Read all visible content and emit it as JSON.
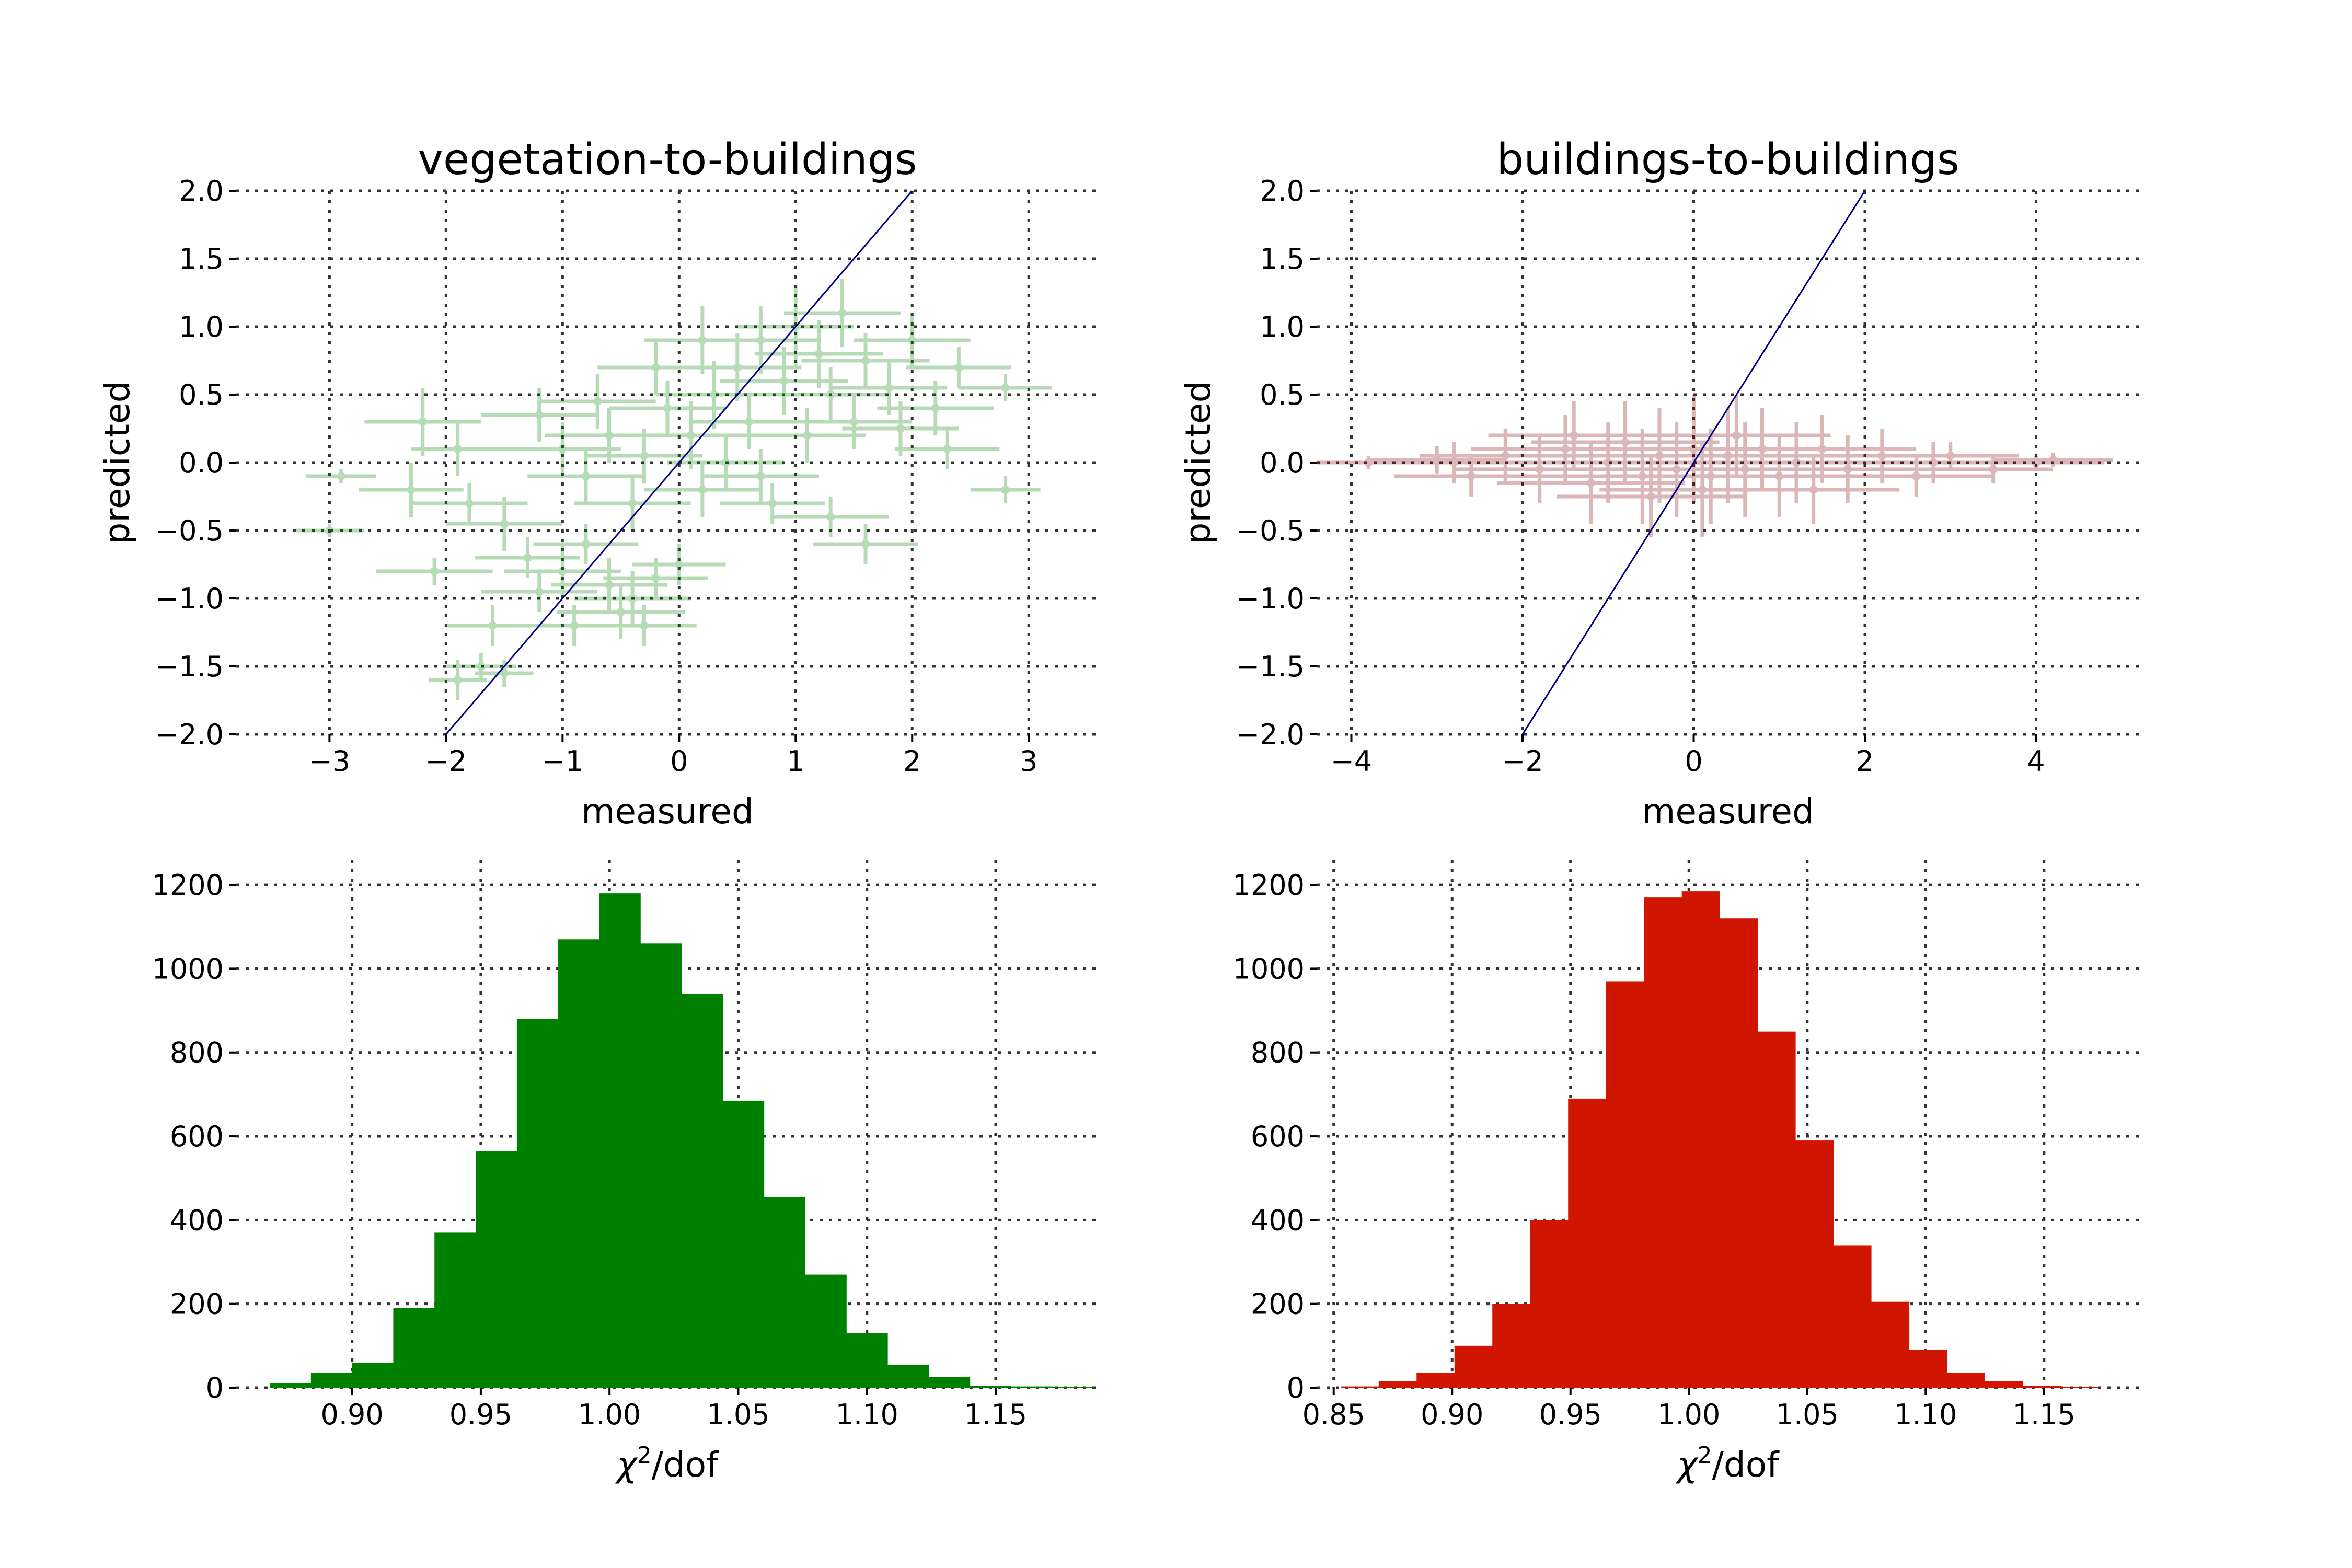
{
  "figure": {
    "background": "#ffffff"
  },
  "chart_data": [
    {
      "id": "veg_scatter",
      "type": "scatter",
      "title": "vegetation-to-buildings",
      "xlabel": "measured",
      "ylabel": "predicted",
      "xlim": [
        -3.8,
        3.6
      ],
      "ylim": [
        -2.0,
        2.0
      ],
      "xticks": [
        -3,
        -2,
        -1,
        0,
        1,
        2,
        3
      ],
      "xtick_labels": [
        "−3",
        "−2",
        "−1",
        "0",
        "1",
        "2",
        "3"
      ],
      "yticks": [
        -2.0,
        -1.5,
        -1.0,
        -0.5,
        0.0,
        0.5,
        1.0,
        1.5,
        2.0
      ],
      "ytick_labels": [
        "−2.0",
        "−1.5",
        "−1.0",
        "−0.5",
        "0.0",
        "0.5",
        "1.0",
        "1.5",
        "2.0"
      ],
      "grid": true,
      "color": "#008000",
      "identity_line": {
        "x": [
          -2,
          2
        ],
        "y": [
          -2,
          2
        ],
        "color": "#000080"
      },
      "points": [
        {
          "x": -2.9,
          "y": -0.1,
          "xerr": 0.3,
          "yerr": 0.05
        },
        {
          "x": -3.0,
          "y": -0.5,
          "xerr": 0.3,
          "yerr": 0.05
        },
        {
          "x": -1.9,
          "y": -1.6,
          "xerr": 0.25,
          "yerr": 0.15
        },
        {
          "x": -1.7,
          "y": -1.5,
          "xerr": 0.3,
          "yerr": 0.1
        },
        {
          "x": -1.5,
          "y": -1.55,
          "xerr": 0.25,
          "yerr": 0.1
        },
        {
          "x": -2.1,
          "y": -0.8,
          "xerr": 0.5,
          "yerr": 0.1
        },
        {
          "x": -1.8,
          "y": -0.3,
          "xerr": 0.5,
          "yerr": 0.15
        },
        {
          "x": -2.2,
          "y": 0.3,
          "xerr": 0.5,
          "yerr": 0.25
        },
        {
          "x": -1.9,
          "y": 0.1,
          "xerr": 0.4,
          "yerr": 0.2
        },
        {
          "x": -1.5,
          "y": -0.45,
          "xerr": 0.5,
          "yerr": 0.2
        },
        {
          "x": -1.3,
          "y": -0.7,
          "xerr": 0.45,
          "yerr": 0.15
        },
        {
          "x": -1.2,
          "y": -0.95,
          "xerr": 0.5,
          "yerr": 0.15
        },
        {
          "x": -1.0,
          "y": -0.8,
          "xerr": 0.5,
          "yerr": 0.2
        },
        {
          "x": -0.8,
          "y": -0.6,
          "xerr": 0.45,
          "yerr": 0.15
        },
        {
          "x": -0.6,
          "y": -0.9,
          "xerr": 0.5,
          "yerr": 0.2
        },
        {
          "x": -0.4,
          "y": -1.0,
          "xerr": 0.5,
          "yerr": 0.2
        },
        {
          "x": -0.2,
          "y": -0.85,
          "xerr": 0.45,
          "yerr": 0.15
        },
        {
          "x": -0.5,
          "y": -1.1,
          "xerr": 0.55,
          "yerr": 0.2
        },
        {
          "x": -0.9,
          "y": -1.2,
          "xerr": 0.4,
          "yerr": 0.15
        },
        {
          "x": 0.0,
          "y": -0.75,
          "xerr": 0.4,
          "yerr": 0.15
        },
        {
          "x": -1.2,
          "y": 0.35,
          "xerr": 0.5,
          "yerr": 0.2
        },
        {
          "x": -1.0,
          "y": 0.1,
          "xerr": 0.5,
          "yerr": 0.2
        },
        {
          "x": -0.8,
          "y": -0.1,
          "xerr": 0.5,
          "yerr": 0.2
        },
        {
          "x": -0.6,
          "y": 0.2,
          "xerr": 0.55,
          "yerr": 0.2
        },
        {
          "x": -0.4,
          "y": -0.3,
          "xerr": 0.5,
          "yerr": 0.2
        },
        {
          "x": -0.3,
          "y": 0.05,
          "xerr": 0.5,
          "yerr": 0.2
        },
        {
          "x": -0.1,
          "y": 0.4,
          "xerr": 0.5,
          "yerr": 0.2
        },
        {
          "x": 0.1,
          "y": 0.2,
          "xerr": 0.55,
          "yerr": 0.25
        },
        {
          "x": 0.2,
          "y": -0.2,
          "xerr": 0.5,
          "yerr": 0.2
        },
        {
          "x": 0.3,
          "y": 0.5,
          "xerr": 0.5,
          "yerr": 0.25
        },
        {
          "x": 0.4,
          "y": 0.0,
          "xerr": 0.5,
          "yerr": 0.2
        },
        {
          "x": 0.5,
          "y": 0.7,
          "xerr": 0.55,
          "yerr": 0.25
        },
        {
          "x": 0.6,
          "y": 0.3,
          "xerr": 0.5,
          "yerr": 0.2
        },
        {
          "x": 0.7,
          "y": 0.9,
          "xerr": 0.5,
          "yerr": 0.25
        },
        {
          "x": 0.8,
          "y": -0.3,
          "xerr": 0.45,
          "yerr": 0.15
        },
        {
          "x": 0.9,
          "y": 0.6,
          "xerr": 0.55,
          "yerr": 0.25
        },
        {
          "x": 1.0,
          "y": 1.0,
          "xerr": 0.5,
          "yerr": 0.3
        },
        {
          "x": 1.1,
          "y": 0.2,
          "xerr": 0.5,
          "yerr": 0.2
        },
        {
          "x": 1.2,
          "y": 0.8,
          "xerr": 0.55,
          "yerr": 0.25
        },
        {
          "x": 1.3,
          "y": 0.5,
          "xerr": 0.5,
          "yerr": 0.2
        },
        {
          "x": 1.4,
          "y": 1.1,
          "xerr": 0.5,
          "yerr": 0.25
        },
        {
          "x": 1.5,
          "y": 0.3,
          "xerr": 0.5,
          "yerr": 0.2
        },
        {
          "x": 1.6,
          "y": 0.75,
          "xerr": 0.55,
          "yerr": 0.2
        },
        {
          "x": 1.8,
          "y": 0.55,
          "xerr": 0.5,
          "yerr": 0.2
        },
        {
          "x": 2.0,
          "y": 0.9,
          "xerr": 0.5,
          "yerr": 0.2
        },
        {
          "x": 2.2,
          "y": 0.4,
          "xerr": 0.5,
          "yerr": 0.2
        },
        {
          "x": 2.4,
          "y": 0.7,
          "xerr": 0.45,
          "yerr": 0.15
        },
        {
          "x": 2.8,
          "y": 0.55,
          "xerr": 0.4,
          "yerr": 0.1
        },
        {
          "x": 2.8,
          "y": -0.2,
          "xerr": 0.3,
          "yerr": 0.1
        },
        {
          "x": 1.6,
          "y": -0.6,
          "xerr": 0.45,
          "yerr": 0.15
        },
        {
          "x": 1.3,
          "y": -0.4,
          "xerr": 0.5,
          "yerr": 0.15
        },
        {
          "x": -0.3,
          "y": -1.2,
          "xerr": 0.45,
          "yerr": 0.15
        },
        {
          "x": 0.2,
          "y": 0.9,
          "xerr": 0.5,
          "yerr": 0.25
        },
        {
          "x": -0.2,
          "y": 0.7,
          "xerr": 0.5,
          "yerr": 0.2
        },
        {
          "x": -1.6,
          "y": -1.2,
          "xerr": 0.4,
          "yerr": 0.15
        },
        {
          "x": 0.7,
          "y": -0.1,
          "xerr": 0.5,
          "yerr": 0.2
        },
        {
          "x": 2.3,
          "y": 0.1,
          "xerr": 0.45,
          "yerr": 0.15
        },
        {
          "x": 1.9,
          "y": 0.25,
          "xerr": 0.5,
          "yerr": 0.2
        },
        {
          "x": -0.7,
          "y": 0.45,
          "xerr": 0.5,
          "yerr": 0.2
        },
        {
          "x": -2.3,
          "y": -0.2,
          "xerr": 0.45,
          "yerr": 0.2
        }
      ]
    },
    {
      "id": "bld_scatter",
      "type": "scatter",
      "title": "buildings-to-buildings",
      "xlabel": "measured",
      "ylabel": "predicted",
      "xlim": [
        -4.4,
        5.2
      ],
      "ylim": [
        -2.0,
        2.0
      ],
      "xticks": [
        -4,
        -2,
        0,
        2,
        4
      ],
      "xtick_labels": [
        "−4",
        "−2",
        "0",
        "2",
        "4"
      ],
      "yticks": [
        -2.0,
        -1.5,
        -1.0,
        -0.5,
        0.0,
        0.5,
        1.0,
        1.5,
        2.0
      ],
      "ytick_labels": [
        "−2.0",
        "−1.5",
        "−1.0",
        "−0.5",
        "0.0",
        "0.5",
        "1.0",
        "1.5",
        "2.0"
      ],
      "grid": true,
      "color": "#800000",
      "identity_line": {
        "x": [
          -2,
          2
        ],
        "y": [
          -2,
          2
        ],
        "color": "#000080"
      },
      "points": [
        {
          "x": -3.8,
          "y": 0.0,
          "xerr": 0.6,
          "yerr": 0.05
        },
        {
          "x": -3.0,
          "y": 0.02,
          "xerr": 0.8,
          "yerr": 0.1
        },
        {
          "x": -2.6,
          "y": -0.1,
          "xerr": 0.9,
          "yerr": 0.15
        },
        {
          "x": -2.2,
          "y": 0.05,
          "xerr": 1.0,
          "yerr": 0.2
        },
        {
          "x": -1.8,
          "y": -0.05,
          "xerr": 1.0,
          "yerr": 0.25
        },
        {
          "x": -1.5,
          "y": 0.1,
          "xerr": 1.1,
          "yerr": 0.25
        },
        {
          "x": -1.2,
          "y": -0.15,
          "xerr": 1.1,
          "yerr": 0.3
        },
        {
          "x": -1.0,
          "y": 0.0,
          "xerr": 1.2,
          "yerr": 0.3
        },
        {
          "x": -0.8,
          "y": 0.15,
          "xerr": 1.1,
          "yerr": 0.3
        },
        {
          "x": -0.6,
          "y": -0.1,
          "xerr": 1.2,
          "yerr": 0.35
        },
        {
          "x": -0.4,
          "y": 0.05,
          "xerr": 1.2,
          "yerr": 0.35
        },
        {
          "x": -0.2,
          "y": -0.05,
          "xerr": 1.2,
          "yerr": 0.35
        },
        {
          "x": 0.0,
          "y": 0.1,
          "xerr": 1.2,
          "yerr": 0.4
        },
        {
          "x": 0.2,
          "y": -0.1,
          "xerr": 1.2,
          "yerr": 0.35
        },
        {
          "x": 0.4,
          "y": 0.05,
          "xerr": 1.2,
          "yerr": 0.35
        },
        {
          "x": 0.6,
          "y": -0.05,
          "xerr": 1.2,
          "yerr": 0.35
        },
        {
          "x": 0.8,
          "y": 0.1,
          "xerr": 1.1,
          "yerr": 0.3
        },
        {
          "x": 1.0,
          "y": -0.1,
          "xerr": 1.2,
          "yerr": 0.3
        },
        {
          "x": 1.2,
          "y": 0.0,
          "xerr": 1.1,
          "yerr": 0.3
        },
        {
          "x": 1.5,
          "y": 0.1,
          "xerr": 1.1,
          "yerr": 0.25
        },
        {
          "x": 1.8,
          "y": -0.05,
          "xerr": 1.0,
          "yerr": 0.25
        },
        {
          "x": 2.2,
          "y": 0.05,
          "xerr": 1.0,
          "yerr": 0.2
        },
        {
          "x": 2.6,
          "y": -0.1,
          "xerr": 0.9,
          "yerr": 0.15
        },
        {
          "x": 3.0,
          "y": 0.05,
          "xerr": 0.8,
          "yerr": 0.1
        },
        {
          "x": 3.5,
          "y": -0.05,
          "xerr": 0.7,
          "yerr": 0.1
        },
        {
          "x": 4.0,
          "y": 0.0,
          "xerr": 0.8,
          "yerr": 0.05
        },
        {
          "x": 4.2,
          "y": 0.02,
          "xerr": 0.7,
          "yerr": 0.05
        },
        {
          "x": -0.5,
          "y": -0.25,
          "xerr": 1.1,
          "yerr": 0.3
        },
        {
          "x": 0.5,
          "y": 0.2,
          "xerr": 1.1,
          "yerr": 0.3
        },
        {
          "x": 1.4,
          "y": -0.2,
          "xerr": 1.0,
          "yerr": 0.25
        },
        {
          "x": -1.4,
          "y": 0.2,
          "xerr": 1.0,
          "yerr": 0.25
        },
        {
          "x": 0.1,
          "y": -0.2,
          "xerr": 1.2,
          "yerr": 0.35
        },
        {
          "x": 2.8,
          "y": 0.0,
          "xerr": 0.9,
          "yerr": 0.15
        },
        {
          "x": -2.8,
          "y": 0.0,
          "xerr": 0.9,
          "yerr": 0.15
        }
      ]
    },
    {
      "id": "veg_hist",
      "type": "bar",
      "title": "",
      "xlabel": "χ²/dof",
      "ylabel": "",
      "xlim": [
        0.855,
        1.19
      ],
      "ylim": [
        0,
        1260
      ],
      "xticks": [
        0.9,
        0.95,
        1.0,
        1.05,
        1.1,
        1.15
      ],
      "xtick_labels": [
        "0.90",
        "0.95",
        "1.00",
        "1.05",
        "1.10",
        "1.15"
      ],
      "yticks": [
        0,
        200,
        400,
        600,
        800,
        1000,
        1200
      ],
      "ytick_labels": [
        "0",
        "200",
        "400",
        "600",
        "800",
        "1000",
        "1200"
      ],
      "grid": true,
      "color": "#008000",
      "bin_edges": [
        0.868,
        0.884,
        0.9,
        0.916,
        0.932,
        0.948,
        0.964,
        0.98,
        0.996,
        1.012,
        1.028,
        1.044,
        1.06,
        1.076,
        1.092,
        1.108,
        1.124,
        1.14,
        1.156,
        1.172,
        1.188
      ],
      "values": [
        10,
        35,
        60,
        190,
        370,
        565,
        880,
        1070,
        1180,
        1060,
        940,
        685,
        455,
        270,
        130,
        55,
        25,
        5,
        3,
        2
      ]
    },
    {
      "id": "bld_hist",
      "type": "bar",
      "title": "",
      "xlabel": "χ²/dof",
      "ylabel": "",
      "xlim": [
        0.843,
        1.19
      ],
      "ylim": [
        0,
        1260
      ],
      "xticks": [
        0.85,
        0.9,
        0.95,
        1.0,
        1.05,
        1.1,
        1.15
      ],
      "xtick_labels": [
        "0.85",
        "0.90",
        "0.95",
        "1.00",
        "1.05",
        "1.10",
        "1.15"
      ],
      "yticks": [
        0,
        200,
        400,
        600,
        800,
        1000,
        1200
      ],
      "ytick_labels": [
        "0",
        "200",
        "400",
        "600",
        "800",
        "1000",
        "1200"
      ],
      "grid": true,
      "color": "#d01500",
      "bin_edges": [
        0.853,
        0.869,
        0.885,
        0.901,
        0.917,
        0.933,
        0.949,
        0.965,
        0.981,
        0.997,
        1.013,
        1.029,
        1.045,
        1.061,
        1.077,
        1.093,
        1.109,
        1.125,
        1.141,
        1.157,
        1.173
      ],
      "values": [
        3,
        15,
        35,
        100,
        200,
        400,
        690,
        970,
        1170,
        1185,
        1120,
        850,
        590,
        340,
        205,
        90,
        35,
        15,
        5,
        2
      ]
    }
  ]
}
